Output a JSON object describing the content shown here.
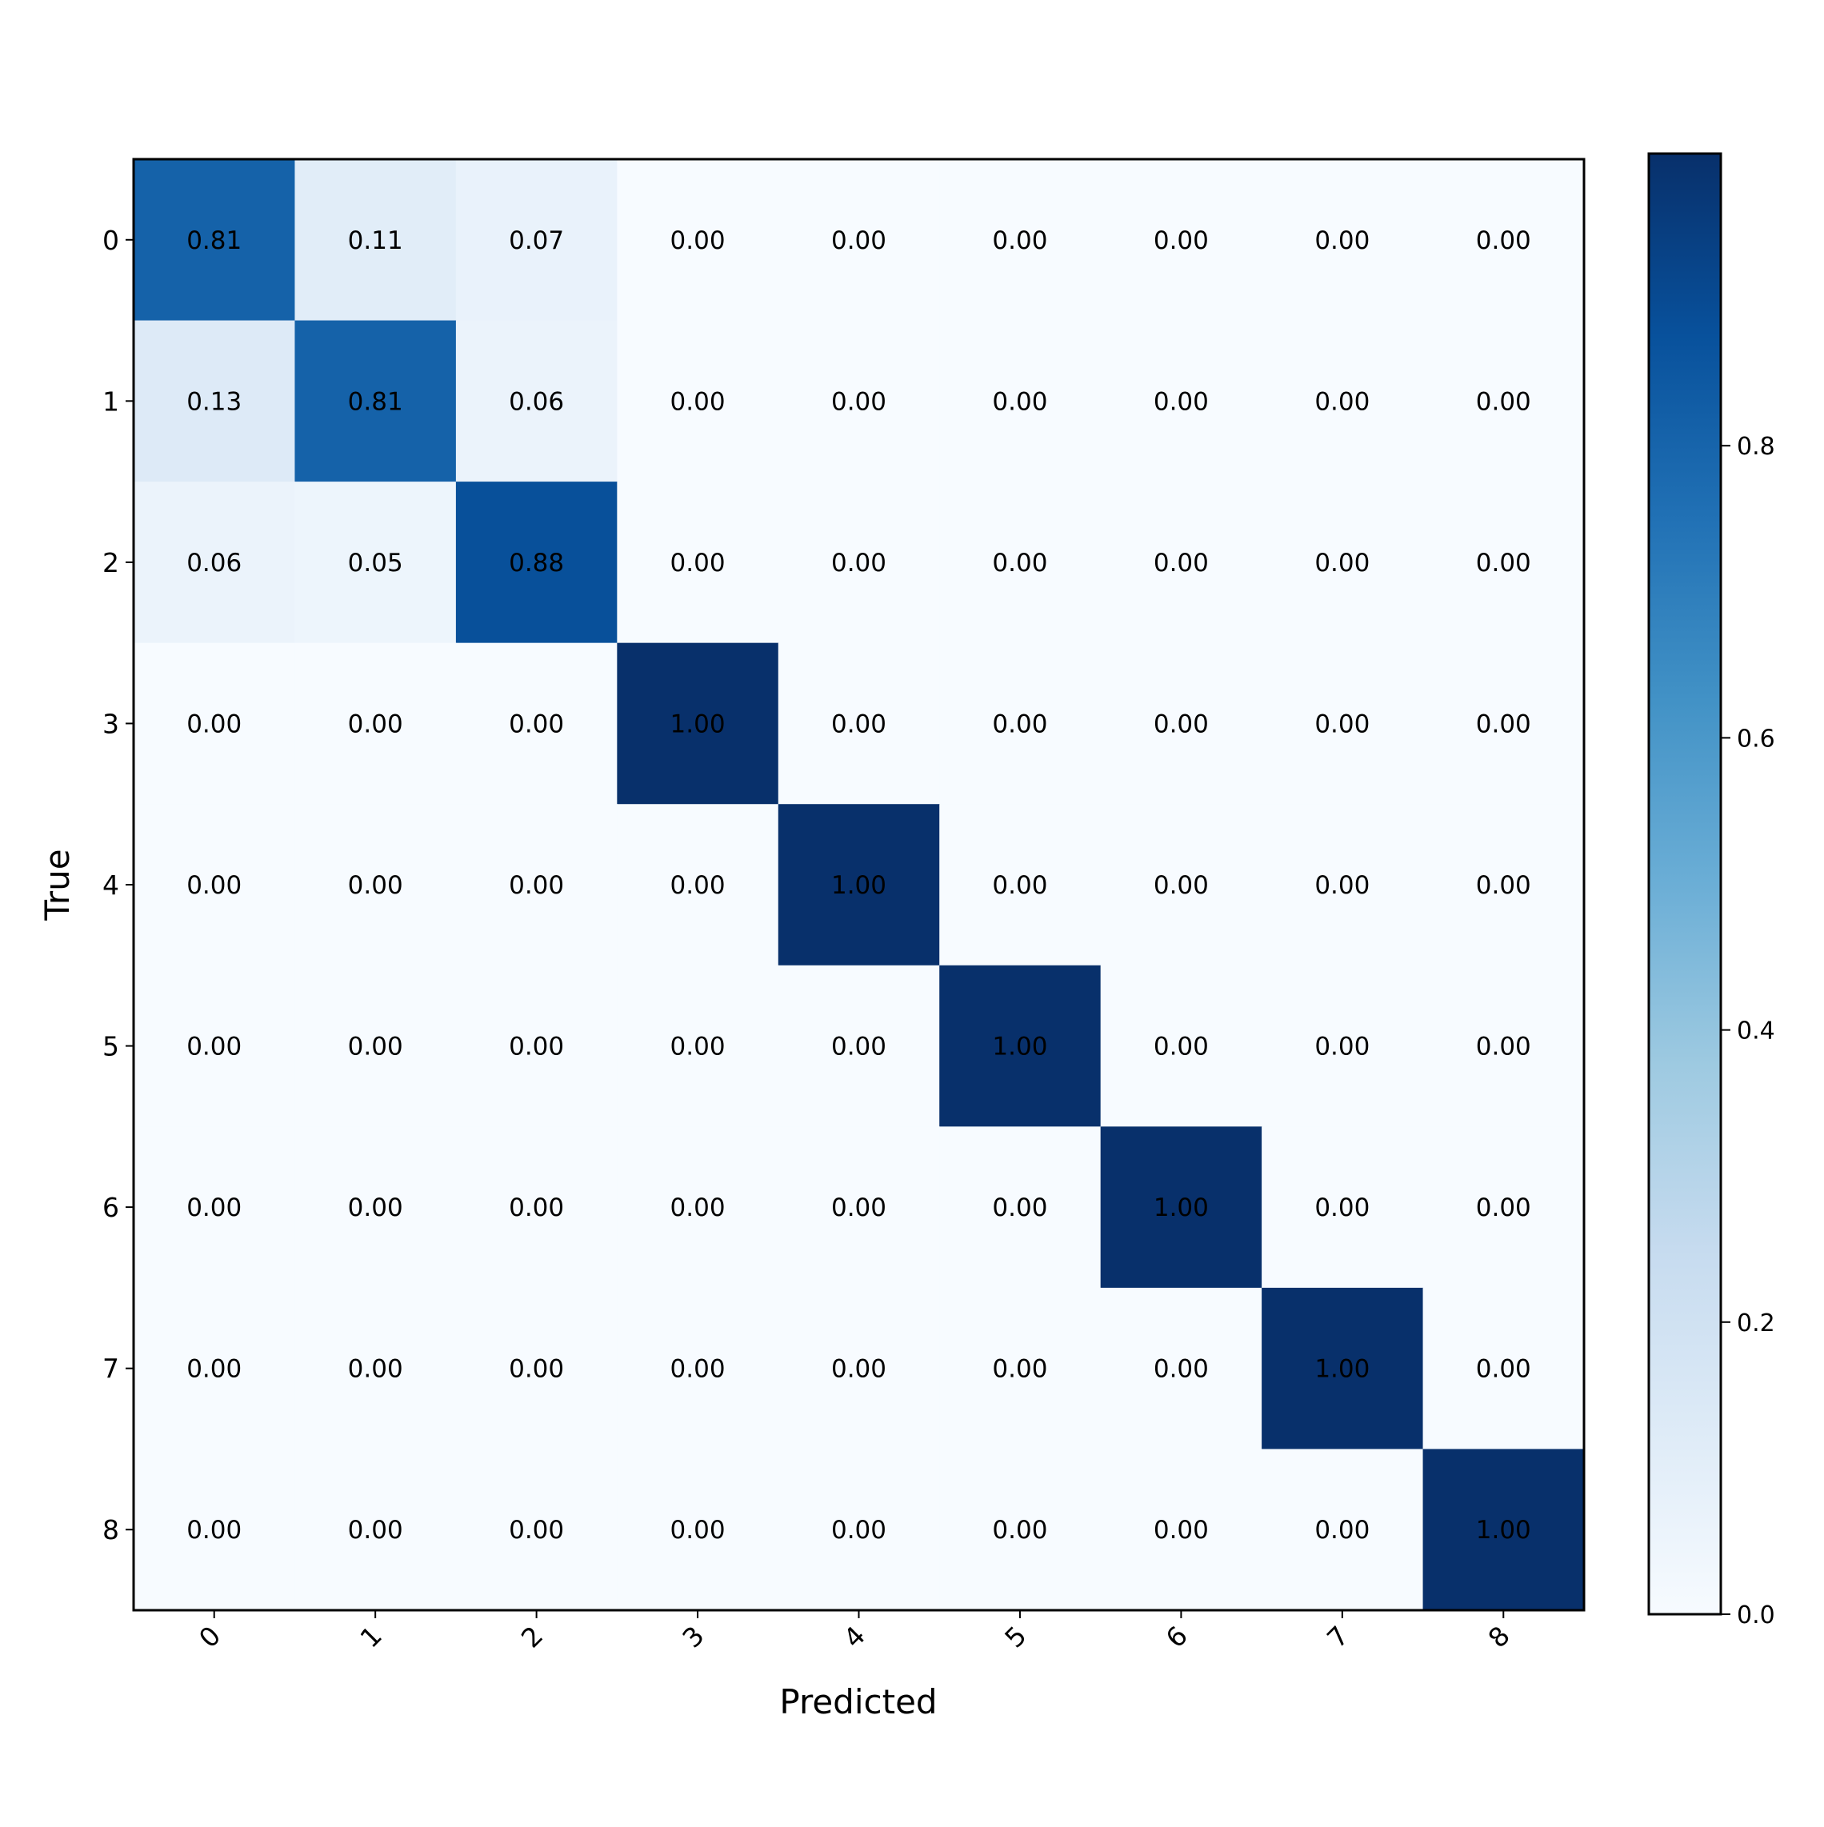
{
  "chart_data": {
    "type": "heatmap",
    "title": "",
    "xlabel": "Predicted",
    "ylabel": "True",
    "x_categories": [
      "0",
      "1",
      "2",
      "3",
      "4",
      "5",
      "6",
      "7",
      "8"
    ],
    "y_categories": [
      "0",
      "1",
      "2",
      "3",
      "4",
      "5",
      "6",
      "7",
      "8"
    ],
    "values": [
      [
        0.81,
        0.11,
        0.07,
        0.0,
        0.0,
        0.0,
        0.0,
        0.0,
        0.0
      ],
      [
        0.13,
        0.81,
        0.06,
        0.0,
        0.0,
        0.0,
        0.0,
        0.0,
        0.0
      ],
      [
        0.06,
        0.05,
        0.88,
        0.0,
        0.0,
        0.0,
        0.0,
        0.0,
        0.0
      ],
      [
        0.0,
        0.0,
        0.0,
        1.0,
        0.0,
        0.0,
        0.0,
        0.0,
        0.0
      ],
      [
        0.0,
        0.0,
        0.0,
        0.0,
        1.0,
        0.0,
        0.0,
        0.0,
        0.0
      ],
      [
        0.0,
        0.0,
        0.0,
        0.0,
        0.0,
        1.0,
        0.0,
        0.0,
        0.0
      ],
      [
        0.0,
        0.0,
        0.0,
        0.0,
        0.0,
        0.0,
        1.0,
        0.0,
        0.0
      ],
      [
        0.0,
        0.0,
        0.0,
        0.0,
        0.0,
        0.0,
        0.0,
        1.0,
        0.0
      ],
      [
        0.0,
        0.0,
        0.0,
        0.0,
        0.0,
        0.0,
        0.0,
        0.0,
        1.0
      ]
    ],
    "colormap": "Blues",
    "colormap_stops": [
      "#f7fbff",
      "#deebf7",
      "#c6dbef",
      "#9ecae1",
      "#6baed6",
      "#4292c6",
      "#2171b5",
      "#08519c",
      "#08306b"
    ],
    "colorbar": {
      "range": [
        0.0,
        1.0
      ],
      "ticks": [
        0.0,
        0.2,
        0.4,
        0.6,
        0.8
      ],
      "tick_labels": [
        "0.0",
        "0.2",
        "0.4",
        "0.6",
        "0.8"
      ]
    },
    "x_tick_rotation_deg": 45
  }
}
